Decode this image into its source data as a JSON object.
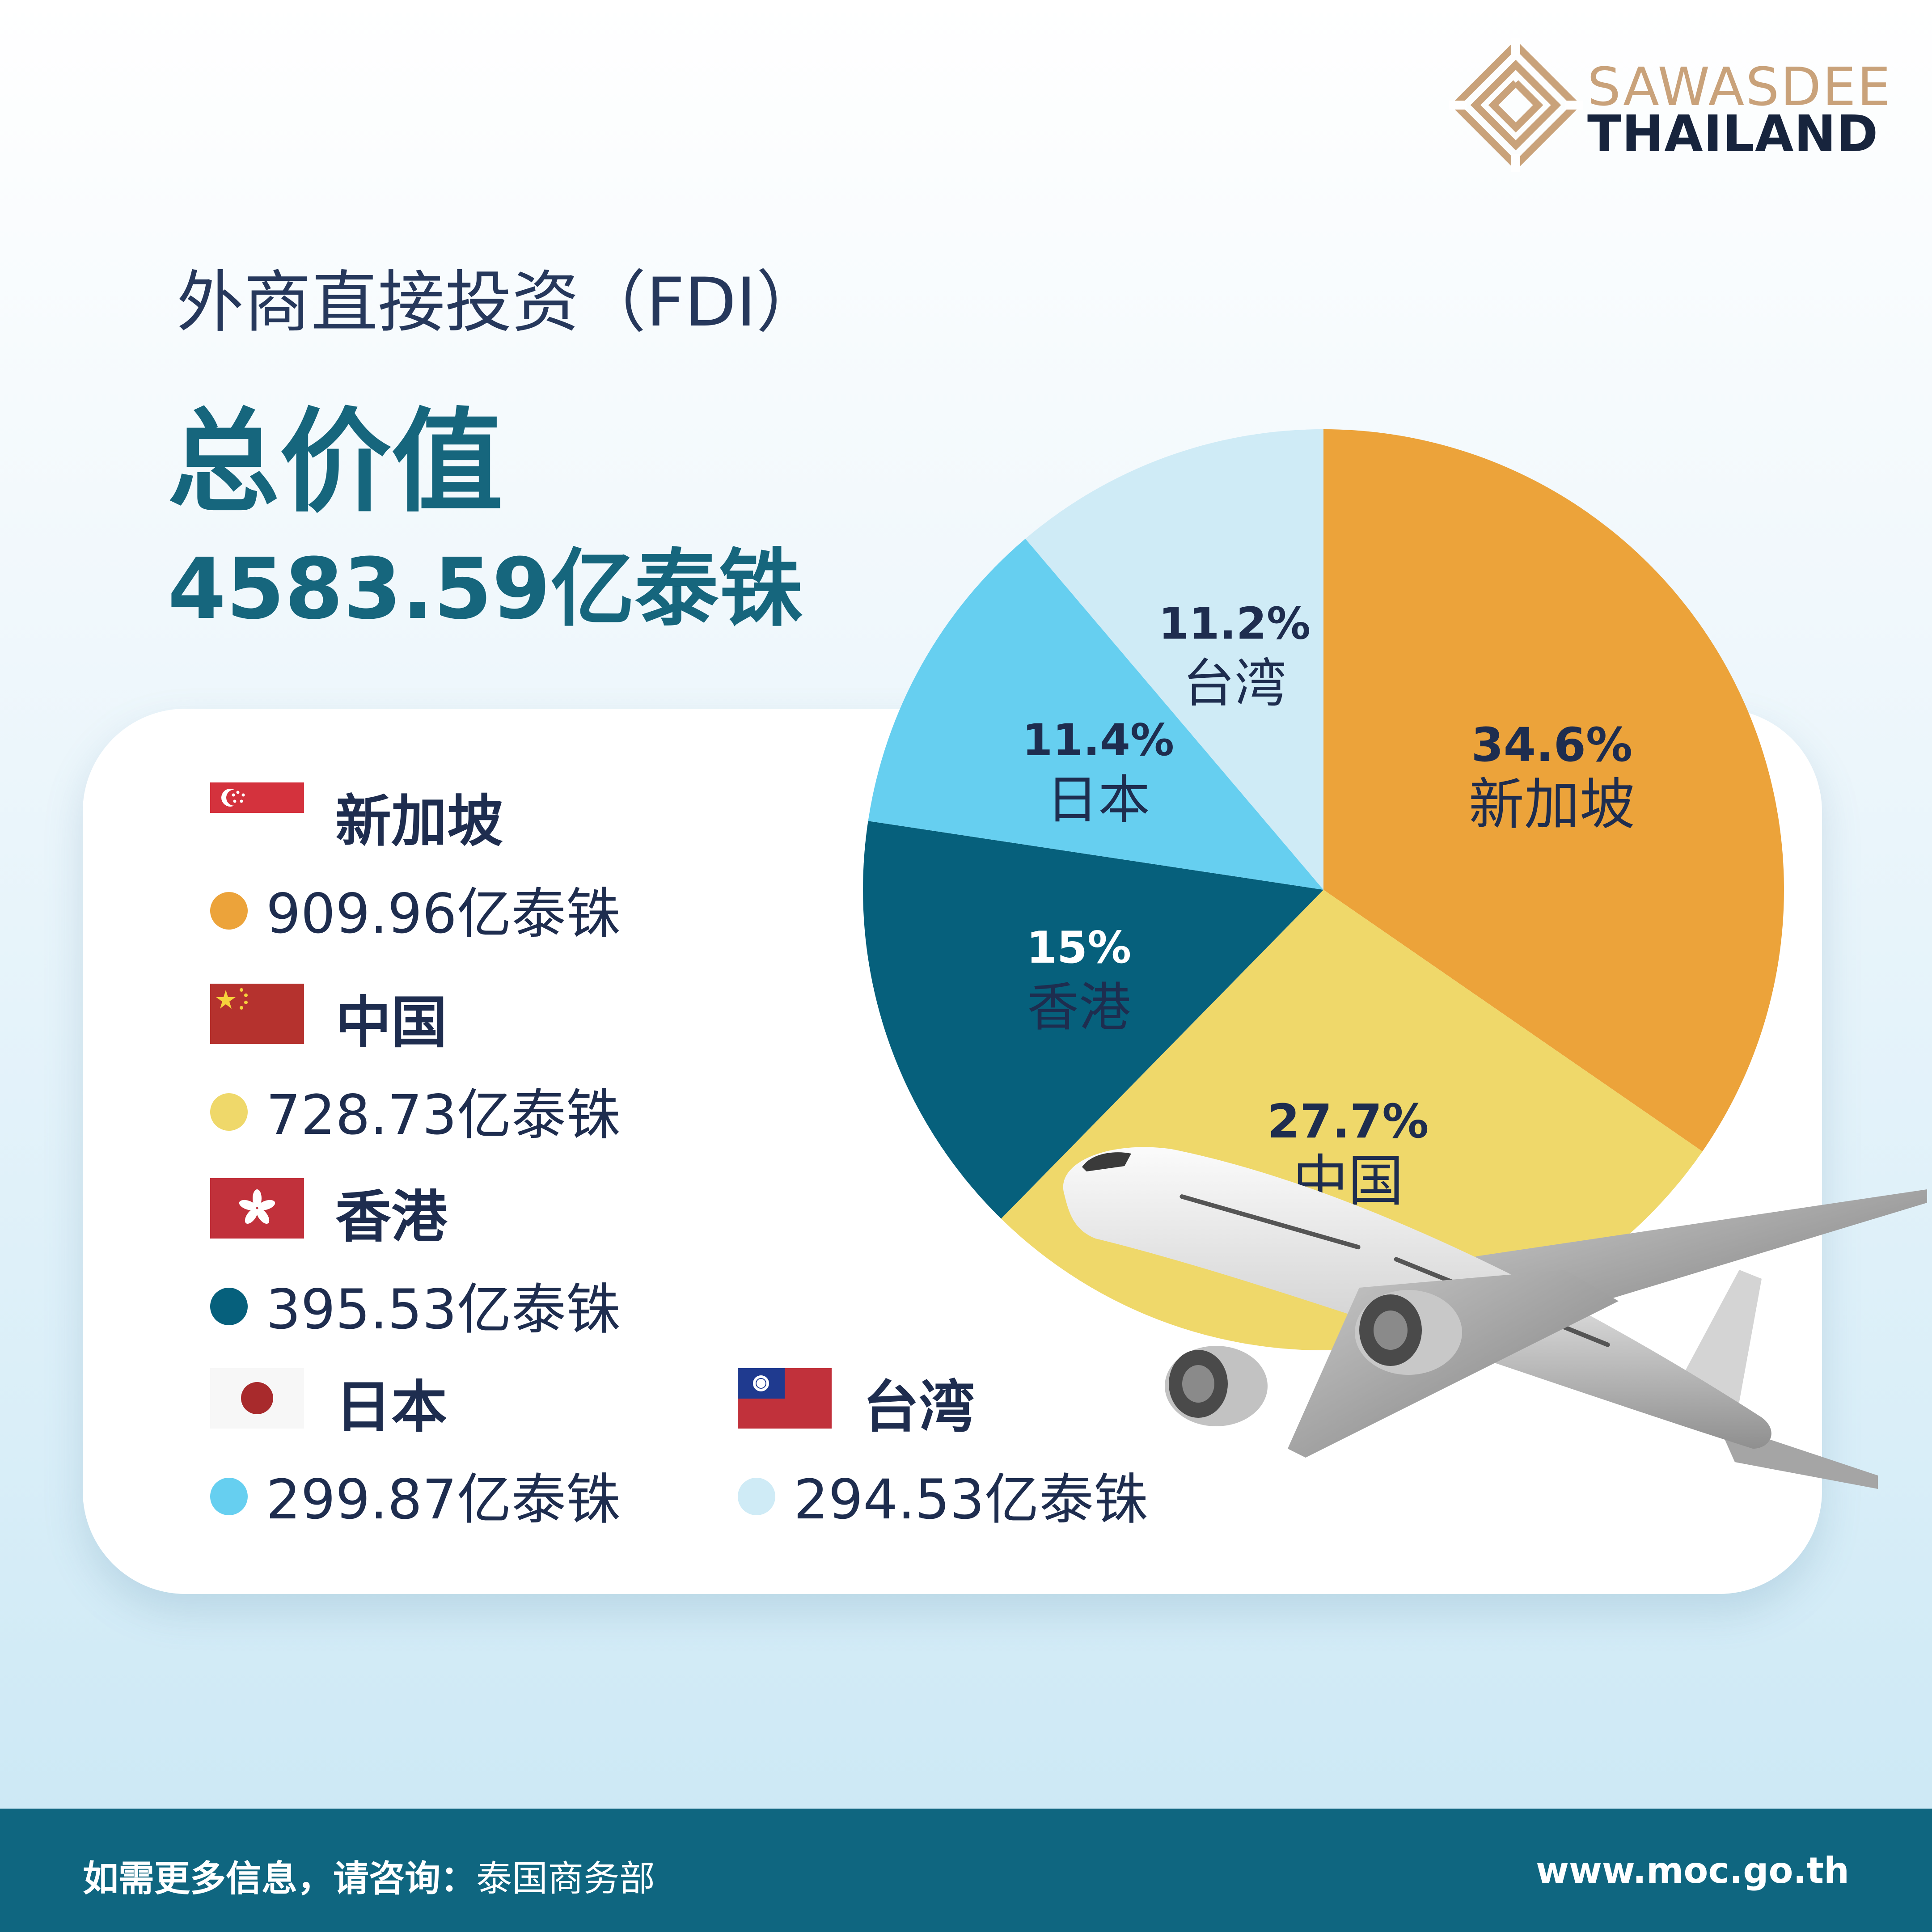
{
  "brand": {
    "line1": "SAWASDEE",
    "line2": "THAILAND"
  },
  "header": {
    "subtitle": "外商直接投资（FDI）",
    "title": "总价值",
    "total": "4583.59亿泰铢"
  },
  "colors": {
    "singapore": "#eca33a",
    "china": "#efd86a",
    "hongkong": "#06607c",
    "japan": "#66cff0",
    "taiwan": "#cfebf6",
    "label": "#1e2d4f"
  },
  "legend": [
    {
      "name": "新加坡",
      "value": "909.96亿泰铢",
      "flag": "singapore-flag"
    },
    {
      "name": "中国",
      "value": "728.73亿泰铢",
      "flag": "china-flag"
    },
    {
      "name": "香港",
      "value": "395.53亿泰铢",
      "flag": "hongkong-flag"
    },
    {
      "name": "日本",
      "value": "299.87亿泰铢",
      "flag": "japan-flag"
    },
    {
      "name": "台湾",
      "value": "294.53亿泰铢",
      "flag": "taiwan-flag"
    }
  ],
  "chart_data": {
    "type": "pie",
    "title": "外商直接投资（FDI）",
    "unit": "亿泰铢",
    "total": 4583.59,
    "slices": [
      {
        "label": "新加坡",
        "value": 909.96,
        "percent": 34.6,
        "percent_text": "34.6%",
        "color": "#eca33a"
      },
      {
        "label": "中国",
        "value": 728.73,
        "percent": 27.7,
        "percent_text": "27.7%",
        "color": "#efd86a"
      },
      {
        "label": "香港",
        "value": 395.53,
        "percent": 15,
        "percent_text": "15%",
        "color": "#06607c"
      },
      {
        "label": "日本",
        "value": 299.87,
        "percent": 11.4,
        "percent_text": "11.4%",
        "color": "#66cff0"
      },
      {
        "label": "台湾",
        "value": 294.53,
        "percent": 11.2,
        "percent_text": "11.2%",
        "color": "#cfebf6"
      }
    ]
  },
  "footer": {
    "info_prefix": "如需更多信息，请咨询：",
    "info_source": "泰国商务部",
    "website": "www.moc.go.th"
  }
}
